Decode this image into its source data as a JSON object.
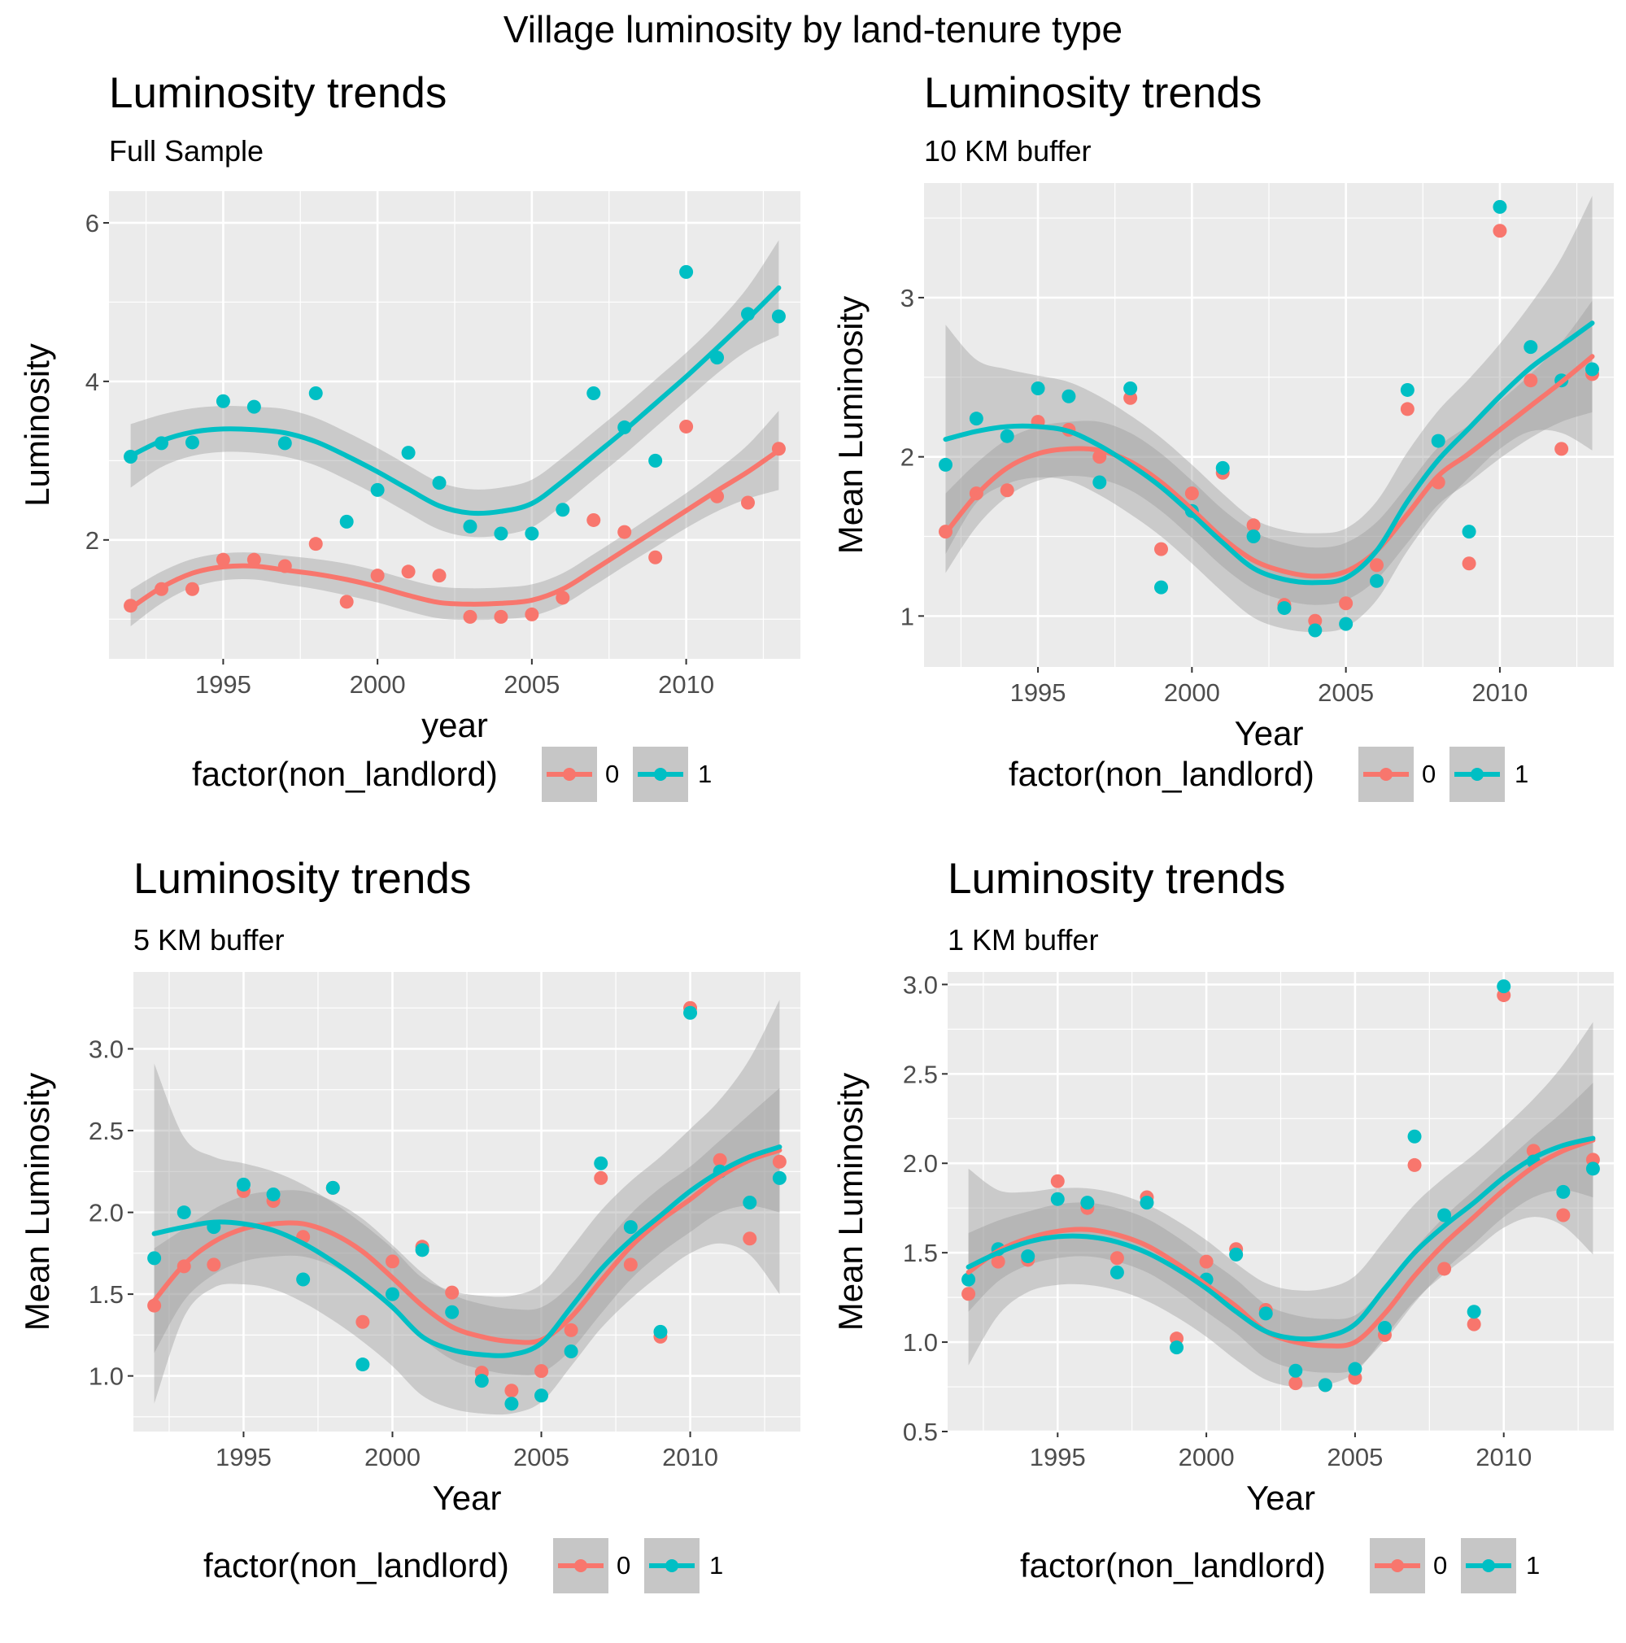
{
  "figure_title": "Village luminosity by land-tenure type",
  "colors": {
    "group_0": "#F8766D",
    "group_1": "#00BFC4",
    "panel_bg": "#EBEBEB",
    "ribbon": "#999999",
    "grid": "#FFFFFF"
  },
  "chart_data": [
    {
      "type": "scatter",
      "title": "Luminosity trends",
      "subtitle": "Full Sample",
      "xlabel": "year",
      "ylabel": "Luminosity",
      "xlim": [
        1991.3,
        2013.7
      ],
      "ylim": [
        0.5,
        6.4
      ],
      "xticks": [
        1995,
        2000,
        2005,
        2010
      ],
      "xtick_labels": [
        "1995",
        "2000",
        "2005",
        "2010"
      ],
      "yticks": [
        2,
        4,
        6
      ],
      "ytick_labels": [
        "2",
        "4",
        "6"
      ],
      "legend": {
        "title": "factor(non_landlord)",
        "labels": [
          "0",
          "1"
        ],
        "position": "bottom"
      },
      "x": [
        1992,
        1993,
        1994,
        1995,
        1996,
        1997,
        1998,
        1999,
        2000,
        2001,
        2002,
        2003,
        2004,
        2005,
        2006,
        2007,
        2008,
        2009,
        2010,
        2011,
        2012,
        2013
      ],
      "series": [
        {
          "name": "0",
          "values": [
            1.17,
            1.38,
            1.38,
            1.75,
            1.75,
            1.67,
            1.95,
            1.22,
            1.55,
            1.6,
            1.55,
            1.03,
            1.03,
            1.06,
            1.27,
            2.25,
            2.1,
            1.78,
            3.43,
            2.55,
            2.47,
            3.15
          ],
          "smooth": [
            1.14,
            1.4,
            1.58,
            1.66,
            1.67,
            1.62,
            1.57,
            1.5,
            1.41,
            1.3,
            1.21,
            1.19,
            1.2,
            1.24,
            1.38,
            1.62,
            1.87,
            2.12,
            2.37,
            2.62,
            2.86,
            3.13
          ],
          "band": [
            0.23,
            0.2,
            0.18,
            0.17,
            0.17,
            0.18,
            0.19,
            0.2,
            0.2,
            0.2,
            0.2,
            0.2,
            0.2,
            0.2,
            0.2,
            0.2,
            0.2,
            0.21,
            0.22,
            0.26,
            0.34,
            0.5
          ]
        },
        {
          "name": "1",
          "values": [
            3.05,
            3.22,
            3.23,
            3.75,
            3.68,
            3.22,
            3.85,
            2.23,
            2.63,
            3.1,
            2.72,
            2.17,
            2.08,
            2.08,
            2.38,
            3.85,
            3.42,
            3.0,
            5.38,
            4.3,
            4.85,
            4.82
          ],
          "smooth": [
            3.06,
            3.25,
            3.36,
            3.4,
            3.39,
            3.35,
            3.24,
            3.06,
            2.86,
            2.64,
            2.43,
            2.34,
            2.36,
            2.46,
            2.74,
            3.06,
            3.38,
            3.72,
            4.06,
            4.42,
            4.79,
            5.18
          ],
          "band": [
            0.4,
            0.33,
            0.3,
            0.29,
            0.29,
            0.3,
            0.3,
            0.3,
            0.3,
            0.3,
            0.3,
            0.3,
            0.3,
            0.3,
            0.3,
            0.3,
            0.3,
            0.3,
            0.3,
            0.32,
            0.4,
            0.6
          ]
        }
      ]
    },
    {
      "type": "scatter",
      "title": "Luminosity trends",
      "subtitle": "10 KM buffer",
      "xlabel": "Year",
      "ylabel": "Mean Luminosity",
      "xlim": [
        1991.3,
        2013.7
      ],
      "ylim": [
        0.68,
        3.72
      ],
      "xticks": [
        1995,
        2000,
        2005,
        2010
      ],
      "xtick_labels": [
        "1995",
        "2000",
        "2005",
        "2010"
      ],
      "yticks": [
        1,
        2,
        3
      ],
      "ytick_labels": [
        "1",
        "2",
        "3"
      ],
      "legend": {
        "title": "factor(non_landlord)",
        "labels": [
          "0",
          "1"
        ],
        "position": "bottom"
      },
      "x": [
        1992,
        1993,
        1994,
        1995,
        1996,
        1997,
        1998,
        1999,
        2000,
        2001,
        2002,
        2003,
        2004,
        2005,
        2006,
        2007,
        2008,
        2009,
        2010,
        2011,
        2012,
        2013
      ],
      "series": [
        {
          "name": "0",
          "values": [
            1.53,
            1.77,
            1.79,
            2.22,
            2.17,
            2.0,
            2.37,
            1.42,
            1.77,
            1.9,
            1.57,
            1.07,
            0.97,
            1.08,
            1.32,
            2.3,
            1.84,
            1.33,
            3.42,
            2.48,
            2.05,
            2.52
          ],
          "smooth": [
            1.52,
            1.76,
            1.93,
            2.02,
            2.05,
            2.04,
            1.97,
            1.84,
            1.67,
            1.49,
            1.35,
            1.28,
            1.25,
            1.28,
            1.41,
            1.64,
            1.88,
            2.02,
            2.17,
            2.32,
            2.47,
            2.63
          ],
          "band": [
            0.25,
            0.2,
            0.18,
            0.17,
            0.17,
            0.18,
            0.18,
            0.18,
            0.18,
            0.18,
            0.18,
            0.18,
            0.18,
            0.18,
            0.18,
            0.18,
            0.18,
            0.18,
            0.18,
            0.2,
            0.25,
            0.35
          ]
        },
        {
          "name": "1",
          "values": [
            1.95,
            2.24,
            2.13,
            2.43,
            2.38,
            1.84,
            2.43,
            1.18,
            1.66,
            1.93,
            1.5,
            1.05,
            0.91,
            0.95,
            1.22,
            2.42,
            2.1,
            1.53,
            3.57,
            2.69,
            2.48,
            2.55
          ],
          "smooth": [
            2.11,
            2.16,
            2.19,
            2.19,
            2.16,
            2.07,
            1.95,
            1.81,
            1.64,
            1.46,
            1.3,
            1.23,
            1.21,
            1.24,
            1.41,
            1.72,
            1.98,
            2.18,
            2.38,
            2.56,
            2.7,
            2.84
          ],
          "band": [
            0.72,
            0.45,
            0.36,
            0.32,
            0.31,
            0.31,
            0.31,
            0.31,
            0.31,
            0.31,
            0.31,
            0.31,
            0.31,
            0.31,
            0.31,
            0.31,
            0.31,
            0.31,
            0.33,
            0.4,
            0.55,
            0.8
          ]
        }
      ]
    },
    {
      "type": "scatter",
      "title": "Luminosity trends",
      "subtitle": "5 KM buffer",
      "xlabel": "Year",
      "ylabel": "Mean Luminosity",
      "xlim": [
        1991.3,
        2013.7
      ],
      "ylim": [
        0.66,
        3.47
      ],
      "xticks": [
        1995,
        2000,
        2005,
        2010
      ],
      "xtick_labels": [
        "1995",
        "2000",
        "2005",
        "2010"
      ],
      "yticks": [
        1.0,
        1.5,
        2.0,
        2.5,
        3.0
      ],
      "ytick_labels": [
        "1.0",
        "1.5",
        "2.0",
        "2.5",
        "3.0"
      ],
      "legend": {
        "title": "factor(non_landlord)",
        "labels": [
          "0",
          "1"
        ],
        "position": "bottom"
      },
      "x": [
        1992,
        1993,
        1994,
        1995,
        1996,
        1997,
        1998,
        1999,
        2000,
        2001,
        2002,
        2003,
        2004,
        2005,
        2006,
        2007,
        2008,
        2009,
        2010,
        2011,
        2012,
        2013
      ],
      "series": [
        {
          "name": "0",
          "values": [
            1.43,
            1.67,
            1.68,
            2.13,
            2.07,
            1.85,
            2.15,
            1.33,
            1.7,
            1.79,
            1.51,
            1.02,
            0.91,
            1.03,
            1.28,
            2.21,
            1.68,
            1.24,
            3.25,
            2.32,
            1.84,
            2.31
          ],
          "smooth": [
            1.46,
            1.68,
            1.82,
            1.9,
            1.93,
            1.93,
            1.87,
            1.76,
            1.6,
            1.43,
            1.3,
            1.24,
            1.21,
            1.22,
            1.36,
            1.58,
            1.79,
            1.95,
            2.08,
            2.22,
            2.32,
            2.38
          ],
          "band": [
            0.32,
            0.22,
            0.2,
            0.2,
            0.2,
            0.2,
            0.2,
            0.2,
            0.2,
            0.2,
            0.2,
            0.2,
            0.2,
            0.2,
            0.2,
            0.2,
            0.2,
            0.2,
            0.2,
            0.22,
            0.28,
            0.38
          ]
        },
        {
          "name": "1",
          "values": [
            1.72,
            2.0,
            1.91,
            2.17,
            2.11,
            1.59,
            2.15,
            1.07,
            1.5,
            1.77,
            1.39,
            0.97,
            0.83,
            0.88,
            1.15,
            2.3,
            1.91,
            1.27,
            3.22,
            2.25,
            2.06,
            2.21
          ],
          "smooth": [
            1.87,
            1.91,
            1.94,
            1.93,
            1.89,
            1.81,
            1.7,
            1.57,
            1.42,
            1.24,
            1.16,
            1.13,
            1.13,
            1.2,
            1.42,
            1.65,
            1.83,
            1.98,
            2.13,
            2.25,
            2.34,
            2.4
          ],
          "band": [
            1.04,
            0.55,
            0.4,
            0.37,
            0.36,
            0.36,
            0.36,
            0.36,
            0.36,
            0.36,
            0.36,
            0.36,
            0.36,
            0.36,
            0.36,
            0.36,
            0.36,
            0.36,
            0.38,
            0.44,
            0.6,
            0.9
          ]
        }
      ]
    },
    {
      "type": "scatter",
      "title": "Luminosity trends",
      "subtitle": "1 KM buffer",
      "xlabel": "Year",
      "ylabel": "Mean Luminosity",
      "xlim": [
        1991.3,
        2013.7
      ],
      "ylim": [
        0.5,
        3.07
      ],
      "xticks": [
        1995,
        2000,
        2005,
        2010
      ],
      "xtick_labels": [
        "1995",
        "2000",
        "2005",
        "2010"
      ],
      "yticks": [
        0.5,
        1.0,
        1.5,
        2.0,
        2.5,
        3.0
      ],
      "ytick_labels": [
        "0.5",
        "1.0",
        "1.5",
        "2.0",
        "2.5",
        "3.0"
      ],
      "legend": {
        "title": "factor(non_landlord)",
        "labels": [
          "0",
          "1"
        ],
        "position": "bottom"
      },
      "x": [
        1992,
        1993,
        1994,
        1995,
        1996,
        1997,
        1998,
        1999,
        2000,
        2001,
        2002,
        2003,
        2004,
        2005,
        2006,
        2007,
        2008,
        2009,
        2010,
        2011,
        2012,
        2013
      ],
      "series": [
        {
          "name": "0",
          "values": [
            1.27,
            1.45,
            1.46,
            1.9,
            1.75,
            1.47,
            1.81,
            1.02,
            1.45,
            1.52,
            1.18,
            0.77,
            0.76,
            0.8,
            1.04,
            1.99,
            1.41,
            1.1,
            2.94,
            2.07,
            1.71,
            2.02
          ],
          "smooth": [
            1.39,
            1.51,
            1.58,
            1.62,
            1.63,
            1.6,
            1.54,
            1.44,
            1.32,
            1.2,
            1.06,
            1.0,
            0.98,
            1.0,
            1.16,
            1.37,
            1.55,
            1.7,
            1.85,
            1.98,
            2.07,
            2.13
          ],
          "band": [
            0.22,
            0.17,
            0.15,
            0.15,
            0.15,
            0.15,
            0.15,
            0.15,
            0.15,
            0.15,
            0.15,
            0.15,
            0.15,
            0.15,
            0.15,
            0.15,
            0.15,
            0.15,
            0.15,
            0.17,
            0.22,
            0.32
          ]
        },
        {
          "name": "1",
          "values": [
            1.35,
            1.52,
            1.48,
            1.8,
            1.78,
            1.39,
            1.78,
            0.97,
            1.35,
            1.49,
            1.16,
            0.84,
            0.76,
            0.85,
            1.08,
            2.15,
            1.71,
            1.17,
            2.99,
            2.01,
            1.84,
            1.97
          ],
          "smooth": [
            1.42,
            1.5,
            1.56,
            1.59,
            1.59,
            1.56,
            1.5,
            1.41,
            1.3,
            1.17,
            1.06,
            1.02,
            1.03,
            1.1,
            1.3,
            1.5,
            1.65,
            1.78,
            1.92,
            2.03,
            2.1,
            2.14
          ],
          "band": [
            0.55,
            0.35,
            0.28,
            0.27,
            0.27,
            0.27,
            0.27,
            0.27,
            0.27,
            0.27,
            0.27,
            0.27,
            0.27,
            0.27,
            0.27,
            0.27,
            0.27,
            0.27,
            0.28,
            0.33,
            0.45,
            0.65
          ]
        }
      ]
    }
  ]
}
